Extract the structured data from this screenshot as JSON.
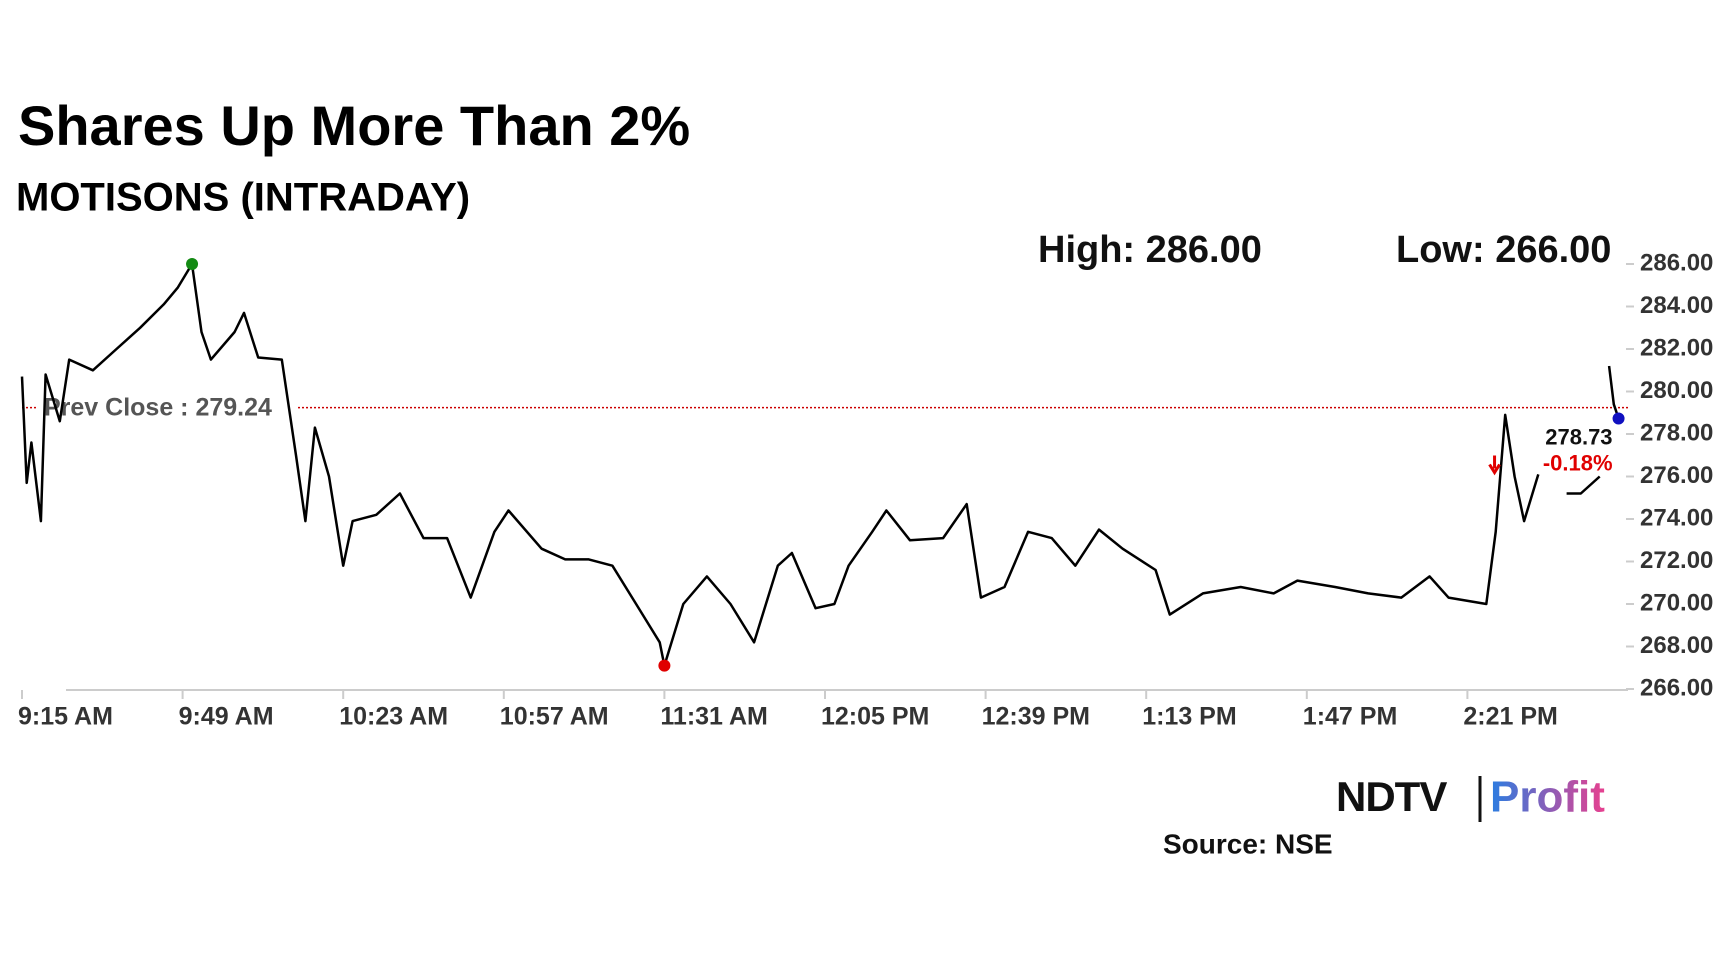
{
  "chart_data": {
    "type": "line",
    "title": "Shares Up More Than 2%",
    "subtitle": "MOTISONS (INTRADAY)",
    "high_text": "High: 286.00",
    "low_text": "Low: 266.00",
    "prev_close": {
      "label": "Prev Close : 279.24",
      "value": 279.24,
      "color": "#cc0000"
    },
    "last_label": "278.73",
    "change_label": "-0.18%",
    "change_color": "#e00000",
    "source": "Source: NSE",
    "logo": {
      "brand": "NDTV",
      "product": "Profit"
    },
    "x": [
      "9:15 AM",
      "9:16 AM",
      "9:17 AM",
      "9:19 AM",
      "9:20 AM",
      "9:23 AM",
      "9:25 AM",
      "9:30 AM",
      "9:35 AM",
      "9:40 AM",
      "9:45 AM",
      "9:48 AM",
      "9:51 AM",
      "9:53 AM",
      "9:55 AM",
      "10:00 AM",
      "10:02 AM",
      "10:05 AM",
      "10:10 AM",
      "10:13 AM",
      "10:15 AM",
      "10:17 AM",
      "10:20 AM",
      "10:23 AM",
      "10:25 AM",
      "10:30 AM",
      "10:35 AM",
      "10:40 AM",
      "10:45 AM",
      "10:50 AM",
      "10:55 AM",
      "10:58 AM",
      "11:05 AM",
      "11:10 AM",
      "11:15 AM",
      "11:20 AM",
      "11:25 AM",
      "11:30 AM",
      "11:31 AM",
      "11:35 AM",
      "11:40 AM",
      "11:45 AM",
      "11:50 AM",
      "11:55 AM",
      "11:58 AM",
      "12:03 PM",
      "12:07 PM",
      "12:10 PM",
      "12:15 PM",
      "12:18 PM",
      "12:23 PM",
      "12:30 PM",
      "12:35 PM",
      "12:38 PM",
      "12:43 PM",
      "12:48 PM",
      "12:53 PM",
      "12:58 PM",
      "1:03 PM",
      "1:08 PM",
      "1:15 PM",
      "1:18 PM",
      "1:25 PM",
      "1:33 PM",
      "1:40 PM",
      "1:45 PM",
      "1:53 PM",
      "2:00 PM",
      "2:07 PM",
      "2:13 PM",
      "2:17 PM",
      "2:25 PM",
      "2:27 PM",
      "2:29 PM",
      "2:31 PM",
      "2:33 PM",
      "2:36 PM",
      "2:39 PM",
      "2:42 PM",
      "2:45 PM",
      "2:49 PM",
      "2:50 PM",
      "2:51 PM",
      "2:52 PM",
      "2:53 PM"
    ],
    "series": [
      {
        "name": "MOTISONS",
        "color": "#000000",
        "values": [
          280.7,
          275.7,
          277.6,
          273.9,
          280.8,
          278.6,
          281.5,
          281.0,
          282.0,
          283.0,
          284.1,
          284.9,
          286.0,
          282.8,
          281.5,
          282.8,
          283.7,
          281.6,
          281.5,
          277.0,
          273.9,
          278.3,
          276.0,
          271.8,
          273.9,
          274.2,
          275.2,
          273.1,
          273.1,
          270.3,
          273.4,
          274.4,
          272.6,
          272.1,
          272.1,
          271.8,
          270.0,
          268.2,
          267.1,
          270.0,
          271.3,
          270.0,
          268.2,
          271.8,
          272.4,
          269.8,
          270.0,
          271.8,
          273.4,
          274.4,
          273.0,
          273.1,
          274.7,
          270.3,
          270.8,
          273.4,
          273.1,
          271.8,
          273.5,
          272.6,
          271.6,
          269.5,
          270.5,
          270.8,
          270.5,
          271.1,
          270.8,
          270.5,
          270.3,
          271.3,
          270.3,
          270.0,
          273.4,
          278.9,
          276.0,
          273.9,
          276.1,
          null,
          275.2,
          275.2,
          276.0,
          null,
          281.2,
          279.4,
          278.73
        ]
      }
    ],
    "high_color": "#138a13",
    "low_color": "#e00000",
    "last_color": "#1010c0",
    "xlim": [
      "9:15 AM",
      "2:55 PM"
    ],
    "xticks": [
      "9:15 AM",
      "9:49 AM",
      "10:23 AM",
      "10:57 AM",
      "11:31 AM",
      "12:05 PM",
      "12:39 PM",
      "1:13 PM",
      "1:47 PM",
      "2:21 PM"
    ],
    "ylim": [
      266,
      286
    ],
    "yticks": [
      {
        "value": 266,
        "label": "266.00"
      },
      {
        "value": 268,
        "label": "268.00"
      },
      {
        "value": 270,
        "label": "270.00"
      },
      {
        "value": 272,
        "label": "272.00"
      },
      {
        "value": 274,
        "label": "274.00"
      },
      {
        "value": 276,
        "label": "276.00"
      },
      {
        "value": 278,
        "label": "278.00"
      },
      {
        "value": 280,
        "label": "280.00"
      },
      {
        "value": 282,
        "label": "282.00"
      },
      {
        "value": 284,
        "label": "284.00"
      },
      {
        "value": 286,
        "label": "286.00"
      }
    ],
    "grid": false
  }
}
